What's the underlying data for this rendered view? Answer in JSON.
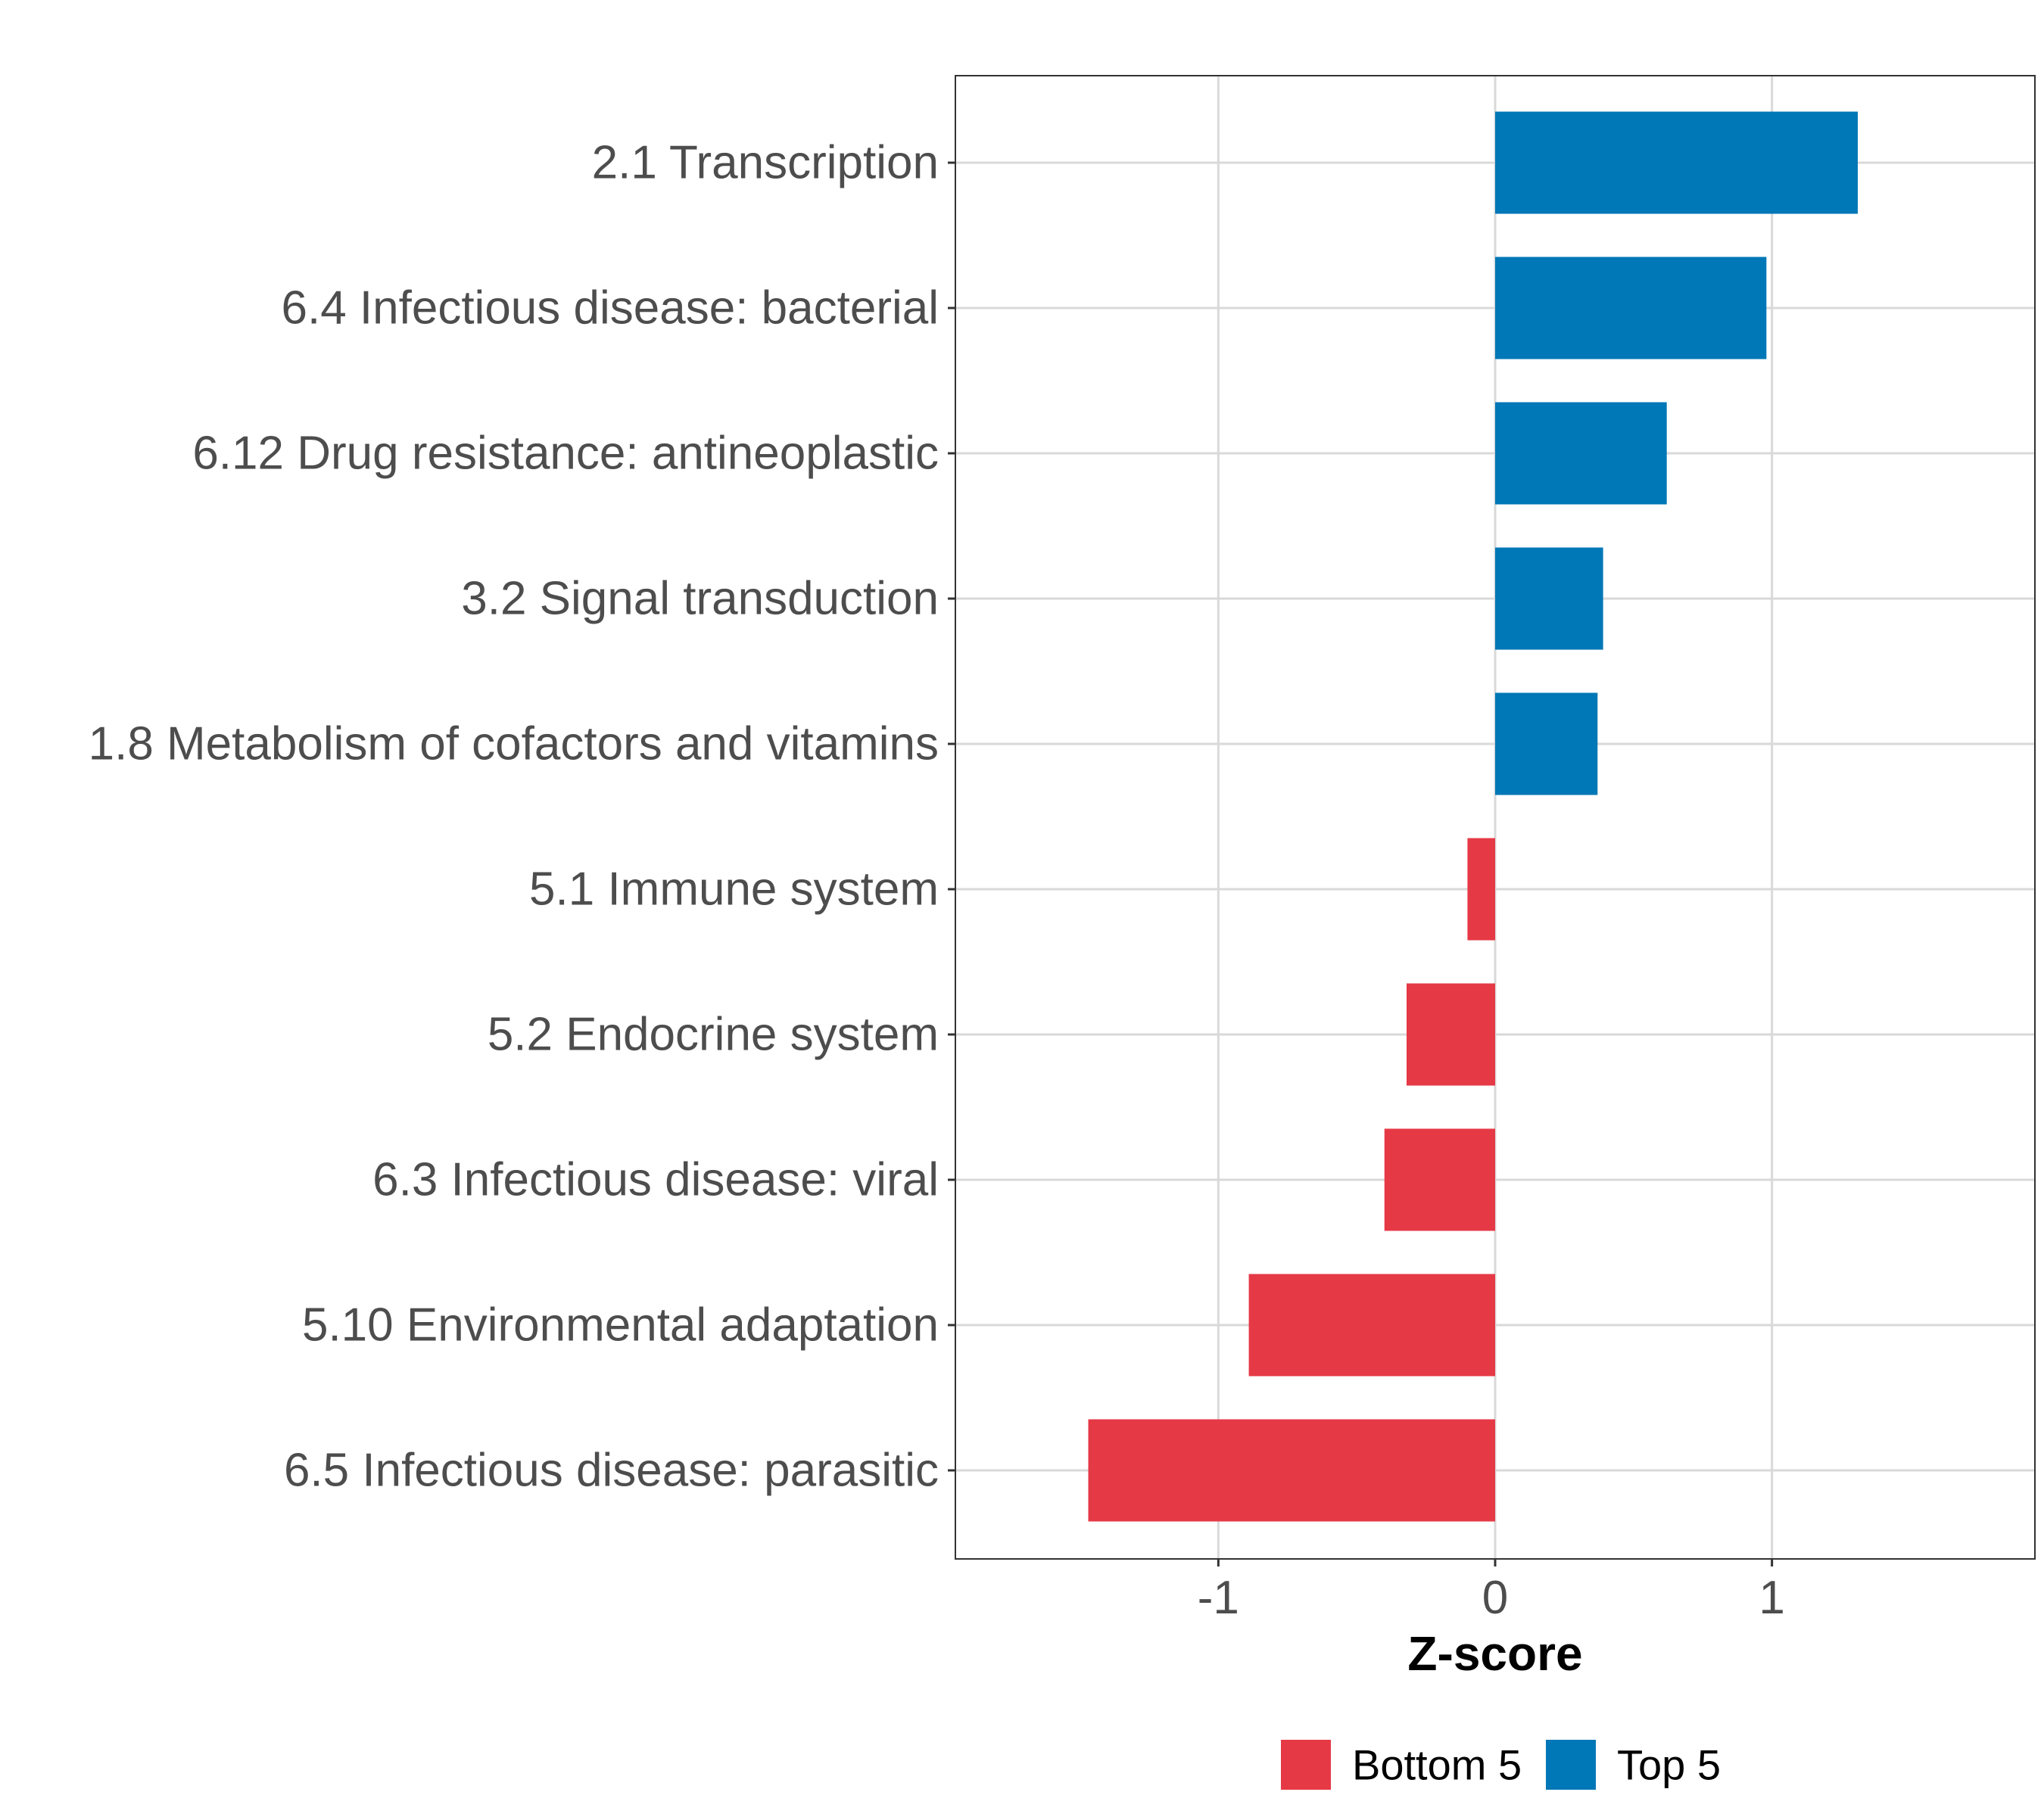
{
  "chart_data": {
    "type": "bar",
    "orientation": "horizontal",
    "title": "",
    "xlabel": "Z-score",
    "ylabel": "",
    "xlim": [
      -1.95,
      1.95
    ],
    "xticks": [
      -1,
      0,
      1
    ],
    "xtick_labels": [
      "-1",
      "0",
      "1"
    ],
    "grid": true,
    "legend_position": "bottom",
    "categories": [
      "2.1 Transcription",
      "6.4 Infectious disease: bacterial",
      "6.12 Drug resistance: antineoplastic",
      "3.2 Signal transduction",
      "1.8 Metabolism of cofactors and vitamins",
      "5.1 Immune system",
      "5.2 Endocrine system",
      "6.3 Infectious disease: viral",
      "5.10 Environmental adaptation",
      "6.5 Infectious disease: parasitic"
    ],
    "values": [
      1.31,
      0.98,
      0.62,
      0.39,
      0.37,
      -0.1,
      -0.32,
      -0.4,
      -0.89,
      -1.47
    ],
    "groups": [
      "Top 5",
      "Top 5",
      "Top 5",
      "Top 5",
      "Top 5",
      "Bottom 5",
      "Bottom 5",
      "Bottom 5",
      "Bottom 5",
      "Bottom 5"
    ],
    "legend": [
      {
        "name": "Bottom 5",
        "color": "#E63946"
      },
      {
        "name": "Top 5",
        "color": "#0077B6"
      }
    ],
    "colors": {
      "Top 5": "#0077B6",
      "Bottom 5": "#E63946"
    }
  }
}
